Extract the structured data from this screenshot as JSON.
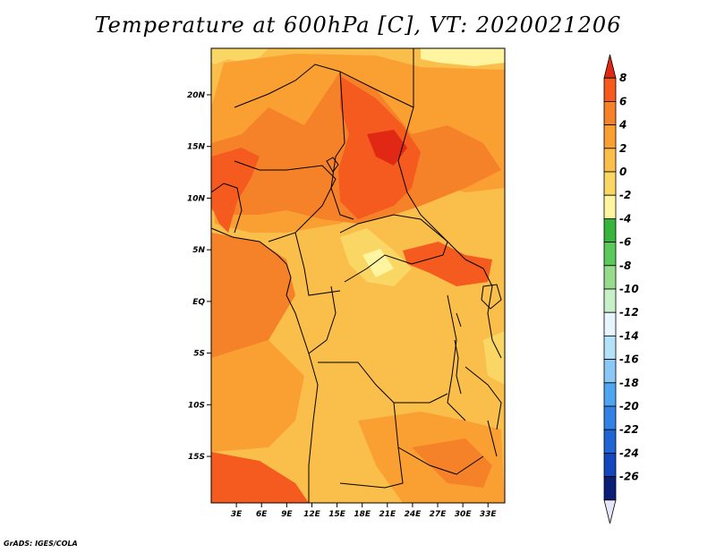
{
  "title": "Temperature at 600hPa [C], VT: 2020021206",
  "credit": "GrADS: IGES/COLA",
  "map": {
    "lat_range": [
      -19.5,
      24.5
    ],
    "lon_range": [
      0,
      35
    ],
    "lat_ticks": [
      {
        "value": 20,
        "label": "20N"
      },
      {
        "value": 15,
        "label": "15N"
      },
      {
        "value": 10,
        "label": "10N"
      },
      {
        "value": 5,
        "label": "5N"
      },
      {
        "value": 0,
        "label": "EQ"
      },
      {
        "value": -5,
        "label": "5S"
      },
      {
        "value": -10,
        "label": "10S"
      },
      {
        "value": -15,
        "label": "15S"
      }
    ],
    "lon_ticks": [
      {
        "value": 3,
        "label": "3E"
      },
      {
        "value": 6,
        "label": "6E"
      },
      {
        "value": 9,
        "label": "9E"
      },
      {
        "value": 12,
        "label": "12E"
      },
      {
        "value": 15,
        "label": "15E"
      },
      {
        "value": 18,
        "label": "18E"
      },
      {
        "value": 21,
        "label": "21E"
      },
      {
        "value": 24,
        "label": "24E"
      },
      {
        "value": 27,
        "label": "27E"
      },
      {
        "value": 30,
        "label": "30E"
      },
      {
        "value": 33,
        "label": "33E"
      }
    ],
    "base_color": "#fabe4b"
  },
  "colorbar": {
    "labels": [
      "8",
      "6",
      "4",
      "2",
      "0",
      "-2",
      "-4",
      "-6",
      "-8",
      "-10",
      "-12",
      "-14",
      "-16",
      "-18",
      "-20",
      "-22",
      "-24",
      "-26"
    ],
    "colors": [
      "#e12814",
      "#f55a1e",
      "#f58228",
      "#faa032",
      "#fabe4b",
      "#fad764",
      "#fff5a0",
      "#37b43c",
      "#5ac85a",
      "#96dc8c",
      "#c8f0c8",
      "#e6f5ff",
      "#b4e1fa",
      "#8cc8f5",
      "#50a5f0",
      "#3282e6",
      "#1e64d2",
      "#1446be",
      "#0a1e78",
      "#e6e6fa"
    ]
  }
}
